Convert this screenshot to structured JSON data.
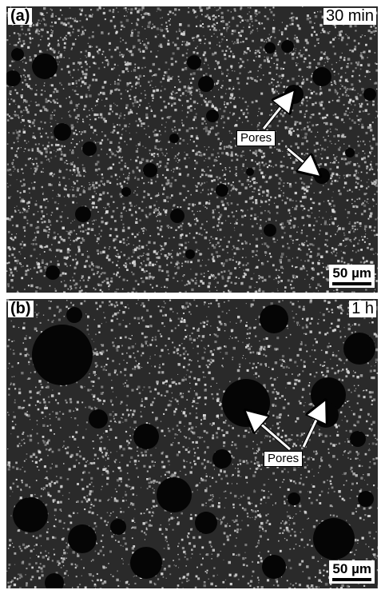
{
  "panels": [
    {
      "letter": "(a)",
      "time": "30 min",
      "pores_label": "Pores",
      "scale_value": "50",
      "scale_unit": "µm"
    },
    {
      "letter": "(b)",
      "time": "1 h",
      "pores_label": "Pores",
      "scale_value": "50",
      "scale_unit": "µm"
    }
  ],
  "colors": {
    "background": "#2a2a2a",
    "grain": "#d8d8d8",
    "pore": "#050505",
    "label_bg": "#ffffff"
  }
}
